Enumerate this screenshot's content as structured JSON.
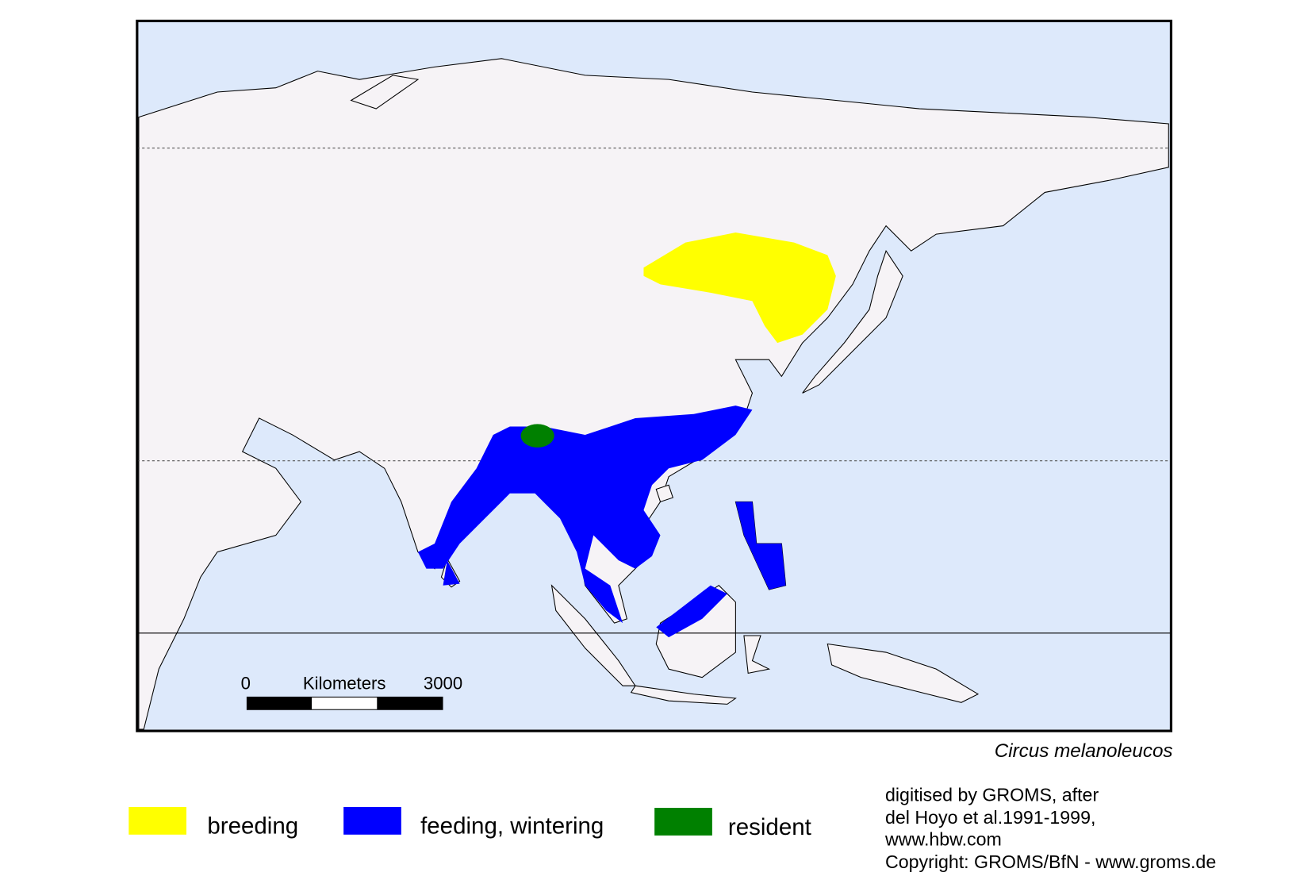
{
  "map": {
    "species": "Circus melanoleucos",
    "scale_bar": {
      "start": "0",
      "unit": "Kilometers",
      "end": "3000"
    },
    "legend": [
      {
        "label": "breeding",
        "color": "#ffff00"
      },
      {
        "label": "feeding, wintering",
        "color": "#0000ff"
      },
      {
        "label": "resident",
        "color": "#008000"
      }
    ],
    "credits": [
      "digitised by GROMS, after",
      "del Hoyo et al.1991-1999,",
      "www.hbw.com",
      "Copyright: GROMS/BfN - www.groms.de"
    ]
  }
}
